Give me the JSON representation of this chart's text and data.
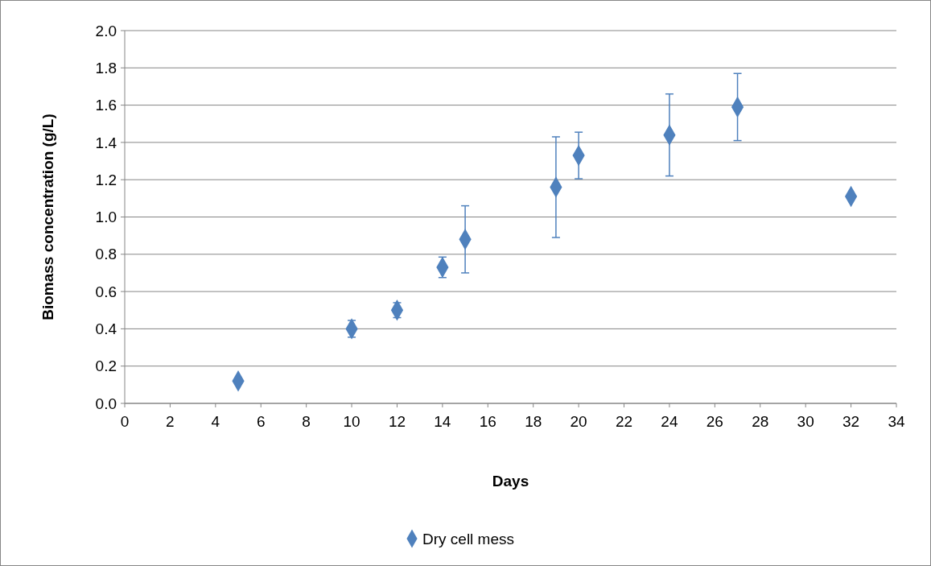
{
  "chart_data": {
    "type": "scatter",
    "xlabel": "Days",
    "ylabel": "Biomass concentration (g/L)",
    "x": [
      5,
      10,
      12,
      14,
      15,
      19,
      20,
      24,
      27,
      32
    ],
    "series": [
      {
        "name": "Dry cell mess",
        "color": "#4f81bd",
        "values": [
          0.12,
          0.4,
          0.5,
          0.73,
          0.88,
          1.16,
          1.33,
          1.44,
          1.59,
          1.11
        ],
        "errors": [
          null,
          0.045,
          0.04,
          0.055,
          0.18,
          0.27,
          0.125,
          0.22,
          0.18,
          null
        ]
      }
    ],
    "xlim": [
      0,
      34
    ],
    "xticks": [
      0,
      2,
      4,
      6,
      8,
      10,
      12,
      14,
      16,
      18,
      20,
      22,
      24,
      26,
      28,
      30,
      32,
      34
    ],
    "ylim": [
      0,
      2.0
    ],
    "yticks": [
      {
        "value": 0,
        "label": "0.0"
      },
      {
        "value": 0.2,
        "label": "0.2"
      },
      {
        "value": 0.4,
        "label": "0.4"
      },
      {
        "value": 0.6,
        "label": "0.6"
      },
      {
        "value": 0.8,
        "label": "0.8"
      },
      {
        "value": 1.0,
        "label": "1.0"
      },
      {
        "value": 1.2,
        "label": "1.2"
      },
      {
        "value": 1.4,
        "label": "1.4"
      },
      {
        "value": 1.6,
        "label": "1.6"
      },
      {
        "value": 1.8,
        "label": "1.8"
      },
      {
        "value": 2.0,
        "label": "2.0"
      }
    ],
    "grid": "y",
    "legend": "bottom",
    "marker": "diamond"
  }
}
